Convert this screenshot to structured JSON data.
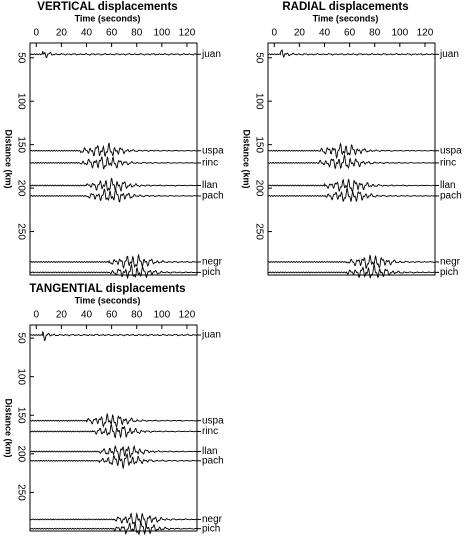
{
  "chart_data": [
    {
      "type": "seismogram",
      "title": "VERTICAL displacements",
      "xlabel": "Time (seconds)",
      "ylabel": "Distance (km)",
      "xlim": [
        -5,
        128
      ],
      "xticks": [
        0,
        20,
        40,
        60,
        80,
        100,
        120
      ],
      "ylim": [
        33,
        300
      ],
      "yticks": [
        50,
        100,
        150,
        200,
        250
      ],
      "series": [
        {
          "name": "juan",
          "distance": 46,
          "onset": 5
        },
        {
          "name": "uspa",
          "distance": 157,
          "onset": 35
        },
        {
          "name": "rinc",
          "distance": 171,
          "onset": 35
        },
        {
          "name": "llan",
          "distance": 197,
          "onset": 40
        },
        {
          "name": "pach",
          "distance": 209,
          "onset": 40
        },
        {
          "name": "negr",
          "distance": 285,
          "onset": 58
        },
        {
          "name": "pich",
          "distance": 297,
          "onset": 58
        }
      ]
    },
    {
      "type": "seismogram",
      "title": "RADIAL displacements",
      "xlabel": "Time (seconds)",
      "ylabel": "Distance (km)",
      "xlim": [
        -5,
        128
      ],
      "xticks": [
        0,
        20,
        40,
        60,
        80,
        100,
        120
      ],
      "ylim": [
        33,
        300
      ],
      "yticks": [
        50,
        100,
        150,
        200,
        250
      ],
      "series": [
        {
          "name": "juan",
          "distance": 46,
          "onset": 5
        },
        {
          "name": "uspa",
          "distance": 157,
          "onset": 35
        },
        {
          "name": "rinc",
          "distance": 171,
          "onset": 35
        },
        {
          "name": "llan",
          "distance": 197,
          "onset": 40
        },
        {
          "name": "pach",
          "distance": 209,
          "onset": 40
        },
        {
          "name": "negr",
          "distance": 285,
          "onset": 58
        },
        {
          "name": "pich",
          "distance": 297,
          "onset": 58
        }
      ]
    },
    {
      "type": "seismogram",
      "title": "TANGENTIAL displacements",
      "xlabel": "Time (seconds)",
      "ylabel": "Distance (km)",
      "xlim": [
        -5,
        128
      ],
      "xticks": [
        0,
        20,
        40,
        60,
        80,
        100,
        120
      ],
      "ylim": [
        33,
        300
      ],
      "yticks": [
        50,
        100,
        150,
        200,
        250
      ],
      "series": [
        {
          "name": "juan",
          "distance": 46,
          "onset": 5
        },
        {
          "name": "uspa",
          "distance": 157,
          "onset": 40
        },
        {
          "name": "rinc",
          "distance": 171,
          "onset": 45
        },
        {
          "name": "llan",
          "distance": 197,
          "onset": 50
        },
        {
          "name": "pach",
          "distance": 209,
          "onset": 50
        },
        {
          "name": "negr",
          "distance": 285,
          "onset": 62
        },
        {
          "name": "pich",
          "distance": 297,
          "onset": 62
        }
      ]
    }
  ]
}
